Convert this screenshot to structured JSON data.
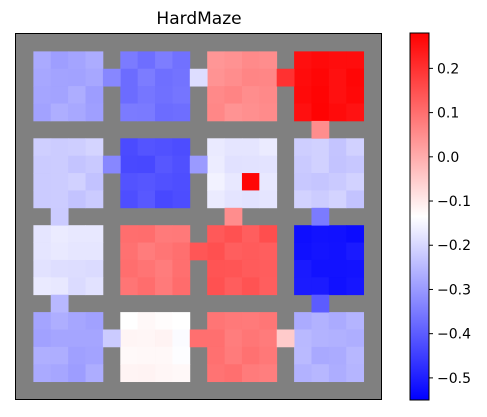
{
  "chart_data": {
    "type": "heatmap",
    "title": "HardMaze",
    "xlabel": "",
    "ylabel": "",
    "grid": false,
    "wall_color": "#808080",
    "colormap": "bwr",
    "colorbar": {
      "vmin": -0.55,
      "vmax": 0.28,
      "ticks": [
        0.2,
        0.1,
        0.0,
        -0.1,
        -0.2,
        -0.3,
        -0.4,
        -0.5
      ],
      "tick_labels": [
        "0.2",
        "0.1",
        "0.0",
        "−0.1",
        "−0.2",
        "−0.3",
        "−0.4",
        "−0.5"
      ]
    },
    "rooms": [
      [
        -0.28,
        -0.36,
        0.05,
        0.26
      ],
      [
        -0.22,
        -0.42,
        -0.17,
        -0.22
      ],
      [
        -0.18,
        0.09,
        0.14,
        -0.52
      ],
      [
        -0.28,
        -0.13,
        0.09,
        -0.26
      ]
    ],
    "hot_cell": {
      "room_row": 1,
      "room_col": 2,
      "value": 0.27
    },
    "doorways": [
      {
        "between": [
          [
            0,
            0
          ],
          [
            0,
            1
          ]
        ],
        "value": -0.33
      },
      {
        "between": [
          [
            0,
            1
          ],
          [
            0,
            2
          ]
        ],
        "value": -0.19
      },
      {
        "between": [
          [
            0,
            2
          ],
          [
            0,
            3
          ]
        ],
        "value": 0.2
      },
      {
        "between": [
          [
            0,
            3
          ],
          [
            1,
            3
          ]
        ],
        "value": 0.05
      },
      {
        "between": [
          [
            1,
            0
          ],
          [
            1,
            1
          ]
        ],
        "value": -0.33
      },
      {
        "between": [
          [
            1,
            1
          ],
          [
            1,
            2
          ]
        ],
        "value": -0.3
      },
      {
        "between": [
          [
            1,
            0
          ],
          [
            2,
            0
          ]
        ],
        "value": -0.22
      },
      {
        "between": [
          [
            1,
            2
          ],
          [
            2,
            2
          ]
        ],
        "value": 0.05
      },
      {
        "between": [
          [
            1,
            3
          ],
          [
            2,
            3
          ]
        ],
        "value": -0.35
      },
      {
        "between": [
          [
            2,
            1
          ],
          [
            2,
            2
          ]
        ],
        "value": 0.14
      },
      {
        "between": [
          [
            2,
            0
          ],
          [
            3,
            0
          ]
        ],
        "value": -0.25
      },
      {
        "between": [
          [
            2,
            3
          ],
          [
            3,
            3
          ]
        ],
        "value": -0.4
      },
      {
        "between": [
          [
            3,
            0
          ],
          [
            3,
            1
          ]
        ],
        "value": -0.22
      },
      {
        "between": [
          [
            3,
            1
          ],
          [
            3,
            2
          ]
        ],
        "value": 0.1
      },
      {
        "between": [
          [
            3,
            2
          ],
          [
            3,
            3
          ]
        ],
        "value": -0.05
      }
    ]
  }
}
